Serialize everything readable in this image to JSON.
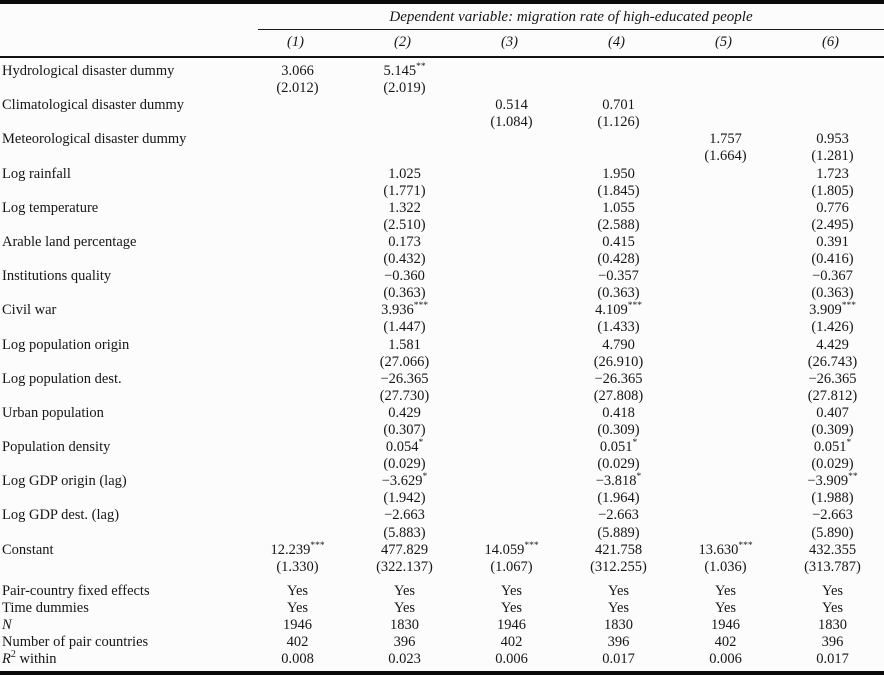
{
  "table": {
    "dependent_variable": "Dependent variable: migration rate of high-educated people",
    "columns": [
      "(1)",
      "(2)",
      "(3)",
      "(4)",
      "(5)",
      "(6)"
    ],
    "rows": [
      {
        "label": "Hydrological disaster dummy",
        "cells": [
          {
            "coef": "3.066",
            "stars": "",
            "se": "(2.012)"
          },
          {
            "coef": "5.145",
            "stars": "**",
            "se": "(2.019)"
          },
          {
            "coef": "",
            "stars": "",
            "se": ""
          },
          {
            "coef": "",
            "stars": "",
            "se": ""
          },
          {
            "coef": "",
            "stars": "",
            "se": ""
          },
          {
            "coef": "",
            "stars": "",
            "se": ""
          }
        ]
      },
      {
        "label": "Climatological disaster dummy",
        "cells": [
          {
            "coef": "",
            "stars": "",
            "se": ""
          },
          {
            "coef": "",
            "stars": "",
            "se": ""
          },
          {
            "coef": "0.514",
            "stars": "",
            "se": "(1.084)"
          },
          {
            "coef": "0.701",
            "stars": "",
            "se": "(1.126)"
          },
          {
            "coef": "",
            "stars": "",
            "se": ""
          },
          {
            "coef": "",
            "stars": "",
            "se": ""
          }
        ]
      },
      {
        "label": "Meteorological disaster dummy",
        "cells": [
          {
            "coef": "",
            "stars": "",
            "se": ""
          },
          {
            "coef": "",
            "stars": "",
            "se": ""
          },
          {
            "coef": "",
            "stars": "",
            "se": ""
          },
          {
            "coef": "",
            "stars": "",
            "se": ""
          },
          {
            "coef": "1.757",
            "stars": "",
            "se": "(1.664)"
          },
          {
            "coef": "0.953",
            "stars": "",
            "se": "(1.281)"
          }
        ]
      },
      {
        "label": "Log rainfall",
        "cells": [
          {
            "coef": "",
            "stars": "",
            "se": ""
          },
          {
            "coef": "1.025",
            "stars": "",
            "se": "(1.771)"
          },
          {
            "coef": "",
            "stars": "",
            "se": ""
          },
          {
            "coef": "1.950",
            "stars": "",
            "se": "(1.845)"
          },
          {
            "coef": "",
            "stars": "",
            "se": ""
          },
          {
            "coef": "1.723",
            "stars": "",
            "se": "(1.805)"
          }
        ]
      },
      {
        "label": "Log temperature",
        "cells": [
          {
            "coef": "",
            "stars": "",
            "se": ""
          },
          {
            "coef": "1.322",
            "stars": "",
            "se": "(2.510)"
          },
          {
            "coef": "",
            "stars": "",
            "se": ""
          },
          {
            "coef": "1.055",
            "stars": "",
            "se": "(2.588)"
          },
          {
            "coef": "",
            "stars": "",
            "se": ""
          },
          {
            "coef": "0.776",
            "stars": "",
            "se": "(2.495)"
          }
        ]
      },
      {
        "label": "Arable land percentage",
        "cells": [
          {
            "coef": "",
            "stars": "",
            "se": ""
          },
          {
            "coef": "0.173",
            "stars": "",
            "se": "(0.432)"
          },
          {
            "coef": "",
            "stars": "",
            "se": ""
          },
          {
            "coef": "0.415",
            "stars": "",
            "se": "(0.428)"
          },
          {
            "coef": "",
            "stars": "",
            "se": ""
          },
          {
            "coef": "0.391",
            "stars": "",
            "se": "(0.416)"
          }
        ]
      },
      {
        "label": "Institutions quality",
        "cells": [
          {
            "coef": "",
            "stars": "",
            "se": ""
          },
          {
            "coef": "−0.360",
            "stars": "",
            "se": "(0.363)"
          },
          {
            "coef": "",
            "stars": "",
            "se": ""
          },
          {
            "coef": "−0.357",
            "stars": "",
            "se": "(0.363)"
          },
          {
            "coef": "",
            "stars": "",
            "se": ""
          },
          {
            "coef": "−0.367",
            "stars": "",
            "se": "(0.363)"
          }
        ]
      },
      {
        "label": "Civil war",
        "cells": [
          {
            "coef": "",
            "stars": "",
            "se": ""
          },
          {
            "coef": "3.936",
            "stars": "***",
            "se": "(1.447)"
          },
          {
            "coef": "",
            "stars": "",
            "se": ""
          },
          {
            "coef": "4.109",
            "stars": "***",
            "se": "(1.433)"
          },
          {
            "coef": "",
            "stars": "",
            "se": ""
          },
          {
            "coef": "3.909",
            "stars": "***",
            "se": "(1.426)"
          }
        ]
      },
      {
        "label": "Log population origin",
        "cells": [
          {
            "coef": "",
            "stars": "",
            "se": ""
          },
          {
            "coef": "1.581",
            "stars": "",
            "se": "(27.066)"
          },
          {
            "coef": "",
            "stars": "",
            "se": ""
          },
          {
            "coef": "4.790",
            "stars": "",
            "se": "(26.910)"
          },
          {
            "coef": "",
            "stars": "",
            "se": ""
          },
          {
            "coef": "4.429",
            "stars": "",
            "se": "(26.743)"
          }
        ]
      },
      {
        "label": "Log population dest.",
        "cells": [
          {
            "coef": "",
            "stars": "",
            "se": ""
          },
          {
            "coef": "−26.365",
            "stars": "",
            "se": "(27.730)"
          },
          {
            "coef": "",
            "stars": "",
            "se": ""
          },
          {
            "coef": "−26.365",
            "stars": "",
            "se": "(27.808)"
          },
          {
            "coef": "",
            "stars": "",
            "se": ""
          },
          {
            "coef": "−26.365",
            "stars": "",
            "se": "(27.812)"
          }
        ]
      },
      {
        "label": "Urban population",
        "cells": [
          {
            "coef": "",
            "stars": "",
            "se": ""
          },
          {
            "coef": "0.429",
            "stars": "",
            "se": "(0.307)"
          },
          {
            "coef": "",
            "stars": "",
            "se": ""
          },
          {
            "coef": "0.418",
            "stars": "",
            "se": "(0.309)"
          },
          {
            "coef": "",
            "stars": "",
            "se": ""
          },
          {
            "coef": "0.407",
            "stars": "",
            "se": "(0.309)"
          }
        ]
      },
      {
        "label": "Population density",
        "cells": [
          {
            "coef": "",
            "stars": "",
            "se": ""
          },
          {
            "coef": "0.054",
            "stars": "*",
            "se": "(0.029)"
          },
          {
            "coef": "",
            "stars": "",
            "se": ""
          },
          {
            "coef": "0.051",
            "stars": "*",
            "se": "(0.029)"
          },
          {
            "coef": "",
            "stars": "",
            "se": ""
          },
          {
            "coef": "0.051",
            "stars": "*",
            "se": "(0.029)"
          }
        ]
      },
      {
        "label": "Log GDP origin (lag)",
        "cells": [
          {
            "coef": "",
            "stars": "",
            "se": ""
          },
          {
            "coef": "−3.629",
            "stars": "*",
            "se": "(1.942)"
          },
          {
            "coef": "",
            "stars": "",
            "se": ""
          },
          {
            "coef": "−3.818",
            "stars": "*",
            "se": "(1.964)"
          },
          {
            "coef": "",
            "stars": "",
            "se": ""
          },
          {
            "coef": "−3.909",
            "stars": "**",
            "se": "(1.988)"
          }
        ]
      },
      {
        "label": "Log GDP dest. (lag)",
        "cells": [
          {
            "coef": "",
            "stars": "",
            "se": ""
          },
          {
            "coef": "−2.663",
            "stars": "",
            "se": "(5.883)"
          },
          {
            "coef": "",
            "stars": "",
            "se": ""
          },
          {
            "coef": "−2.663",
            "stars": "",
            "se": "(5.889)"
          },
          {
            "coef": "",
            "stars": "",
            "se": ""
          },
          {
            "coef": "−2.663",
            "stars": "",
            "se": "(5.890)"
          }
        ]
      },
      {
        "label": "Constant",
        "cells": [
          {
            "coef": "12.239",
            "stars": "***",
            "se": "(1.330)"
          },
          {
            "coef": "477.829",
            "stars": "",
            "se": "(322.137)"
          },
          {
            "coef": "14.059",
            "stars": "***",
            "se": "(1.067)"
          },
          {
            "coef": "421.758",
            "stars": "",
            "se": "(312.255)"
          },
          {
            "coef": "13.630",
            "stars": "***",
            "se": "(1.036)"
          },
          {
            "coef": "432.355",
            "stars": "",
            "se": "(313.787)"
          }
        ]
      }
    ],
    "summary_rows": [
      {
        "label_parts": [
          {
            "text": "Pair-country fixed effects",
            "style": "normal"
          }
        ],
        "values": [
          "Yes",
          "Yes",
          "Yes",
          "Yes",
          "Yes",
          "Yes"
        ]
      },
      {
        "label_parts": [
          {
            "text": "Time dummies",
            "style": "normal"
          }
        ],
        "values": [
          "Yes",
          "Yes",
          "Yes",
          "Yes",
          "Yes",
          "Yes"
        ]
      },
      {
        "label_parts": [
          {
            "text": "N",
            "style": "italic"
          }
        ],
        "values": [
          "1946",
          "1830",
          "1946",
          "1830",
          "1946",
          "1830"
        ]
      },
      {
        "label_parts": [
          {
            "text": "Number of pair countries",
            "style": "normal"
          }
        ],
        "values": [
          "402",
          "396",
          "402",
          "396",
          "402",
          "396"
        ]
      },
      {
        "label_parts": [
          {
            "text": "R",
            "style": "italic"
          },
          {
            "text": "2",
            "style": "sup"
          },
          {
            "text": " within",
            "style": "normal"
          }
        ],
        "values": [
          "0.008",
          "0.023",
          "0.006",
          "0.017",
          "0.006",
          "0.017"
        ]
      }
    ]
  }
}
